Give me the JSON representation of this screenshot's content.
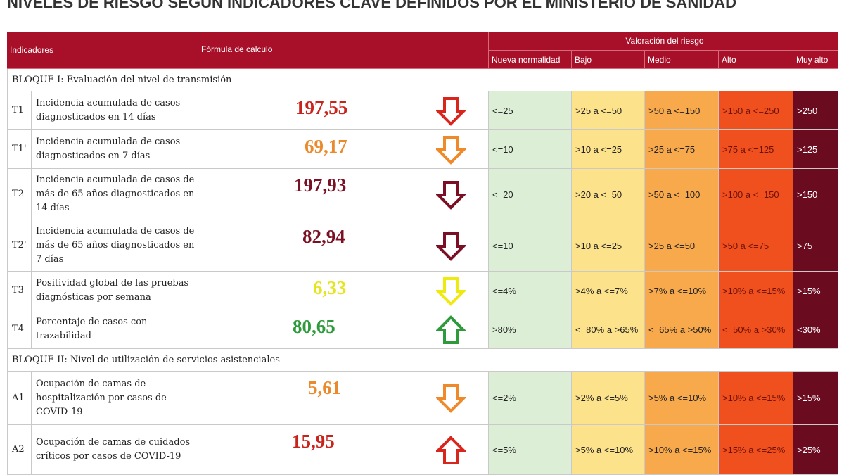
{
  "title": "NIVELES DE RIESGO SEGÚN INDICADORES CLAVE DEFINIDOS POR EL MINISTERIO DE SANIDAD",
  "table": {
    "header": {
      "indicators": "Indicadores",
      "formula": "Fórmula de calculo",
      "risk": "Valoración del riesgo",
      "levels": [
        "Nueva normalidad",
        "Bajo",
        "Medio",
        "Alto",
        "Muy alto"
      ]
    },
    "level_colors": [
      "#dcefd6",
      "#fde28c",
      "#f8a94c",
      "#f04f1e",
      "#6b0b20"
    ],
    "sections": [
      {
        "title": "BLOQUE I: Evaluación del nivel de transmisión",
        "rows": [
          {
            "code": "T1",
            "indicator": "Incidencia acumulada de casos diagnosticados en 14 días",
            "value": "197,55",
            "value_color": "#c8241c",
            "arrow": "down",
            "arrow_color": "#d8261d",
            "levels": [
              "<=25",
              ">25 a <=50",
              ">50 a <=150",
              ">150 a <=250",
              ">250"
            ]
          },
          {
            "code": "T1'",
            "indicator": "Incidencia acumulada de casos diagnosticados en 7 días",
            "value": "69,17",
            "value_color": "#ea8a2c",
            "arrow": "down",
            "arrow_color": "#ee8a2a",
            "levels": [
              "<=10",
              ">10 a <=25",
              ">25 a <=75",
              ">75 a <=125",
              ">125"
            ]
          },
          {
            "code": "T2",
            "indicator": "Incidencia acumulada de casos de más de 65 años diagnosticados en 14 días",
            "value": "197,93",
            "value_color": "#7b1024",
            "arrow": "down",
            "arrow_color": "#7b1024",
            "levels": [
              "<=20",
              ">20 a <=50",
              ">50 a <=100",
              ">100 a <=150",
              ">150"
            ]
          },
          {
            "code": "T2'",
            "indicator": "Incidencia acumulada de casos de más de 65 años diagnosticados en 7 días",
            "value": "82,94",
            "value_color": "#7b1024",
            "arrow": "down",
            "arrow_color": "#7b1024",
            "levels": [
              "<=10",
              ">10 a <=25",
              ">25 a <=50",
              ">50 a <=75",
              ">75"
            ]
          },
          {
            "code": "T3",
            "indicator": "Positividad global de las pruebas diagnósticas por semana",
            "value": "6,33",
            "value_color": "#e6e41c",
            "arrow": "down",
            "arrow_color": "#eeea10",
            "levels": [
              "<=4%",
              ">4% a <=7%",
              ">7% a <=10%",
              ">10% a <=15%",
              ">15%"
            ]
          },
          {
            "code": "T4",
            "indicator": "Porcentaje de casos con trazabilidad",
            "value": "80,65",
            "value_color": "#2f9a3c",
            "arrow": "up",
            "arrow_color": "#2f9a3c",
            "levels": [
              ">80%",
              "<=80% a >65%",
              "<=65% a >50%",
              "<=50% a >30%",
              "<30%"
            ]
          }
        ]
      },
      {
        "title": "BLOQUE II: Nivel de utilización de servicios asistenciales",
        "rows": [
          {
            "code": "A1",
            "indicator": "Ocupación de camas de hospitalización por casos de COVID-19",
            "value": "5,61",
            "value_color": "#ea8a2c",
            "arrow": "down",
            "arrow_color": "#ee8a2a",
            "levels": [
              "<=2%",
              ">2% a <=5%",
              ">5% a <=10%",
              ">10% a <=15%",
              ">15%"
            ]
          },
          {
            "code": "A2",
            "indicator": "Ocupación de camas de cuidados críticos por casos de COVID-19",
            "value": "15,95",
            "value_color": "#c8241c",
            "arrow": "up",
            "arrow_color": "#d8261d",
            "levels": [
              "<=5%",
              ">5% a <=10%",
              ">10% a <=15%",
              ">15% a <=25%",
              ">25%"
            ]
          }
        ]
      }
    ]
  }
}
